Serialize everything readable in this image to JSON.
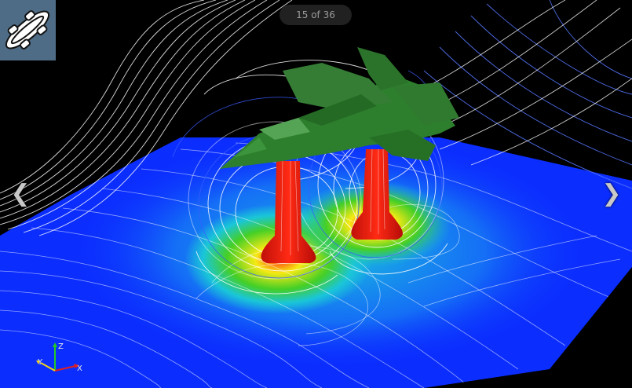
{
  "counter": {
    "text": "15 of 36"
  },
  "nav": {
    "prev_glyph": "❮",
    "next_glyph": "❯"
  },
  "axes": {
    "x": "X",
    "y": "Y",
    "z": "Z"
  },
  "icons": {
    "logo": "spaceship-logo-icon",
    "prev": "chevron-left-icon",
    "next": "chevron-right-icon"
  },
  "colors": {
    "background": "#000000",
    "plane_low": "#0d2cff",
    "plane_mid": "#1bd3d8",
    "plane_high_green": "#3ecf22",
    "plane_high_yellow": "#f2ef14",
    "jet_red": "#ff1a10",
    "aircraft": "#2a7a2a",
    "streamline_white": "#ffffff",
    "streamline_blue": "#4a6bff",
    "logo_bg": "#4f6c86"
  }
}
